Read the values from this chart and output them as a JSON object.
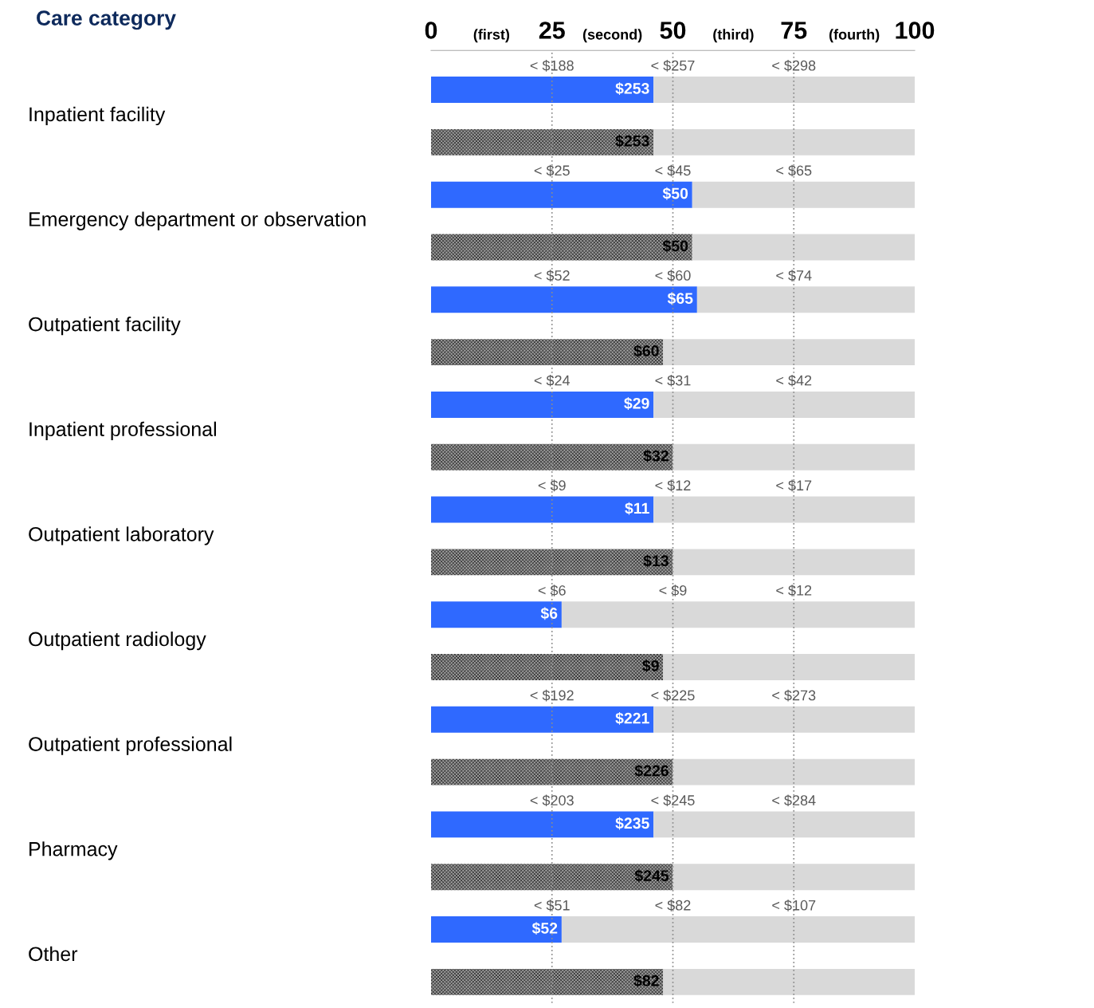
{
  "chart_data": {
    "type": "bar",
    "orientation": "horizontal",
    "stacked": true,
    "ylabel": "Care category",
    "categories": [
      "Inpatient facility",
      null,
      "Emergency department or observation",
      null,
      "Outpatient facility",
      null,
      "Inpatient professional",
      null,
      "Outpatient laboratory",
      null,
      "Outpatient radiology",
      null,
      "Outpatient professional",
      null,
      "Pharmacy",
      null,
      "Other",
      null
    ],
    "series": [
      {
        "colors": [
          "#2f69ff",
          "#9a9a9a",
          "#2f69ff",
          "#9a9a9a",
          "#2f69ff",
          "#9a9a9a",
          "#2f69ff",
          "#9a9a9a",
          "#2f69ff",
          "#9a9a9a",
          "#2f69ff",
          "#9a9a9a",
          "#2f69ff",
          "#9a9a9a",
          "#2f69ff",
          "#9a9a9a",
          "#2f69ff",
          "#9a9a9a"
        ],
        "values": [
          46,
          46,
          54,
          54,
          55,
          48,
          46,
          50,
          46,
          50,
          27,
          48,
          46,
          50,
          46,
          50,
          27,
          48
        ]
      },
      {
        "color": "#d9d9d9",
        "values": [
          54,
          54,
          46,
          46,
          45,
          52,
          54,
          50,
          54,
          50,
          73,
          52,
          54,
          50,
          54,
          50,
          73,
          52
        ]
      }
    ],
    "xlim": [
      0,
      100
    ],
    "xticks": [
      0,
      25,
      50,
      75,
      100
    ],
    "grid": "x",
    "annotations": [
      "(first)",
      "(second)",
      "(third)",
      "(fourth)",
      "$253",
      "$253",
      "< $188",
      "< $257",
      "< $298",
      "$50",
      "$50",
      "< $25",
      "< $45",
      "< $65",
      "$65",
      "$60",
      "< $52",
      "< $60",
      "< $74",
      "$29",
      "$32",
      "< $24",
      "< $31",
      "< $42",
      "$11",
      "$13",
      "< $9",
      "< $12",
      "< $17",
      "$6",
      "$9",
      "< $6",
      "< $9",
      "< $12",
      "$221",
      "$226",
      "< $192",
      "< $225",
      "< $273",
      "$235",
      "$245",
      "< $203",
      "< $245",
      "< $284",
      "$52",
      "$82",
      "< $51",
      "< $82",
      "< $107"
    ]
  }
}
